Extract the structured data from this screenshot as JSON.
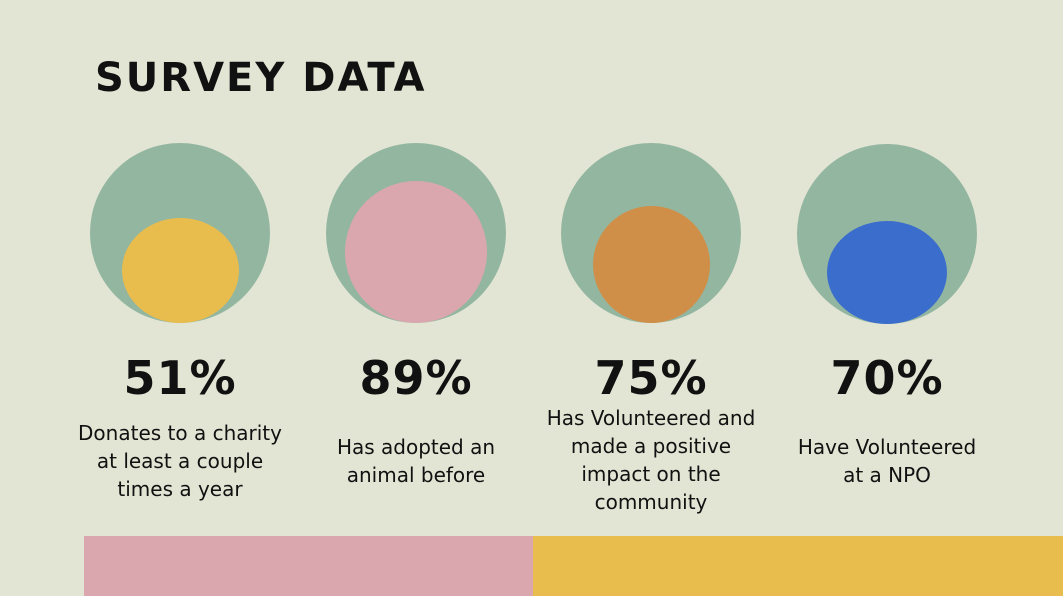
{
  "title": "SURVEY DATA",
  "colors": {
    "background": "#e2e5d4",
    "outer_circle": "#93b6a0",
    "pink": "#dba7ae",
    "yellow": "#e9bc4e",
    "orange": "#d08f48",
    "blue": "#3b6dcc"
  },
  "stats": [
    {
      "percent": "51%",
      "caption": "Donates to a charity at least a couple times a year",
      "value": 51,
      "inner_color": "#e9bc4e"
    },
    {
      "percent": "89%",
      "caption": "Has adopted an animal before",
      "value": 89,
      "inner_color": "#dba7ae"
    },
    {
      "percent": "75%",
      "caption": "Has Volunteered and made a positive impact on the community",
      "value": 75,
      "inner_color": "#d08f48"
    },
    {
      "percent": "70%",
      "caption": "Have Volunteered at a NPO",
      "value": 70,
      "inner_color": "#3b6dcc"
    }
  ],
  "bottom_bars": [
    {
      "color": "#dba7ae"
    },
    {
      "color": "#e9bc4e"
    }
  ]
}
